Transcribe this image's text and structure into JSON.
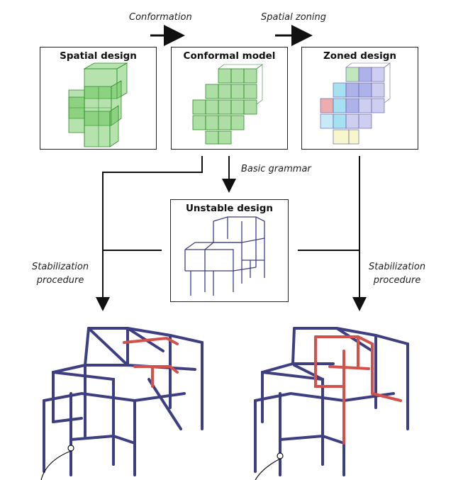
{
  "flow": {
    "conformation": "Conformation",
    "spatial_zoning": "Spatial zoning",
    "basic_grammar": "Basic grammar",
    "stabilization_left": [
      "Stabilization",
      "procedure"
    ],
    "stabilization_right": [
      "Stabilization",
      "procedure"
    ]
  },
  "panels": {
    "spatial_design": "Spatial design",
    "conformal_model": "Conformal model",
    "zoned_design": "Zoned design",
    "unstable_design": "Unstable design"
  },
  "colors": {
    "line": "#111111",
    "green_fill": "#5bbf4a",
    "green_edge": "#2f8a2a",
    "frame": "#3d3f82",
    "highlight": "#d4504a",
    "zone_blue": "#6a73d6",
    "zone_cyan": "#5fc9e6",
    "zone_red": "#e06a6a",
    "zone_yellow": "#f2eea0",
    "zone_green": "#8fd48a"
  }
}
